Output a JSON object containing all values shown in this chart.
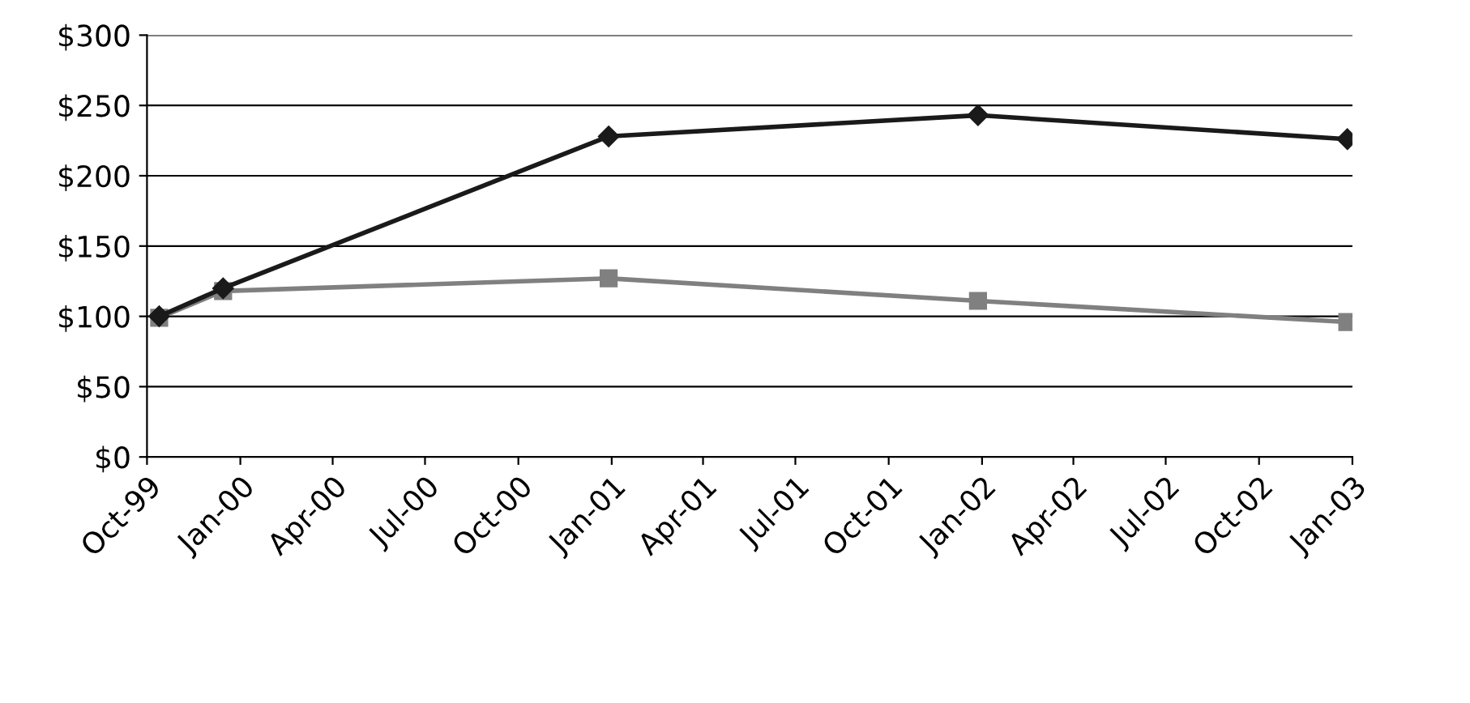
{
  "chart_data": {
    "type": "line",
    "x": [
      "1999-10-13",
      "1999-12-15",
      "2000-12-29",
      "2001-12-28",
      "2002-12-27"
    ],
    "series": [
      {
        "color": "#1a1a1a",
        "marker": "diamond",
        "values": [
          100,
          120,
          228,
          243,
          226
        ]
      },
      {
        "color": "#808080",
        "marker": "square",
        "values": [
          99,
          118,
          127,
          111,
          96
        ]
      }
    ],
    "ylim": [
      0,
      300
    ],
    "yticks": [
      {
        "value": 0,
        "label": "$0"
      },
      {
        "value": 50,
        "label": "$50"
      },
      {
        "value": 100,
        "label": "$100"
      },
      {
        "value": 150,
        "label": "$150"
      },
      {
        "value": 200,
        "label": "$200"
      },
      {
        "value": 250,
        "label": "$250"
      },
      {
        "value": 300,
        "label": "$300"
      }
    ],
    "xlim": [
      "1999-10-01",
      "2003-01-01"
    ],
    "xticks": [
      {
        "value": "1999-10-01",
        "label": "Oct-99"
      },
      {
        "value": "2000-01-01",
        "label": "Jan-00"
      },
      {
        "value": "2000-04-01",
        "label": "Apr-00"
      },
      {
        "value": "2000-07-01",
        "label": "Jul-00"
      },
      {
        "value": "2000-10-01",
        "label": "Oct-00"
      },
      {
        "value": "2001-01-01",
        "label": "Jan-01"
      },
      {
        "value": "2001-04-01",
        "label": "Apr-01"
      },
      {
        "value": "2001-07-01",
        "label": "Jul-01"
      },
      {
        "value": "2001-10-01",
        "label": "Oct-01"
      },
      {
        "value": "2002-01-01",
        "label": "Jan-02"
      },
      {
        "value": "2002-04-01",
        "label": "Apr-02"
      },
      {
        "value": "2002-07-01",
        "label": "Jul-02"
      },
      {
        "value": "2002-10-01",
        "label": "Oct-02"
      },
      {
        "value": "2003-01-01",
        "label": "Jan-03"
      }
    ],
    "grid": "y",
    "line_style": "solid"
  }
}
